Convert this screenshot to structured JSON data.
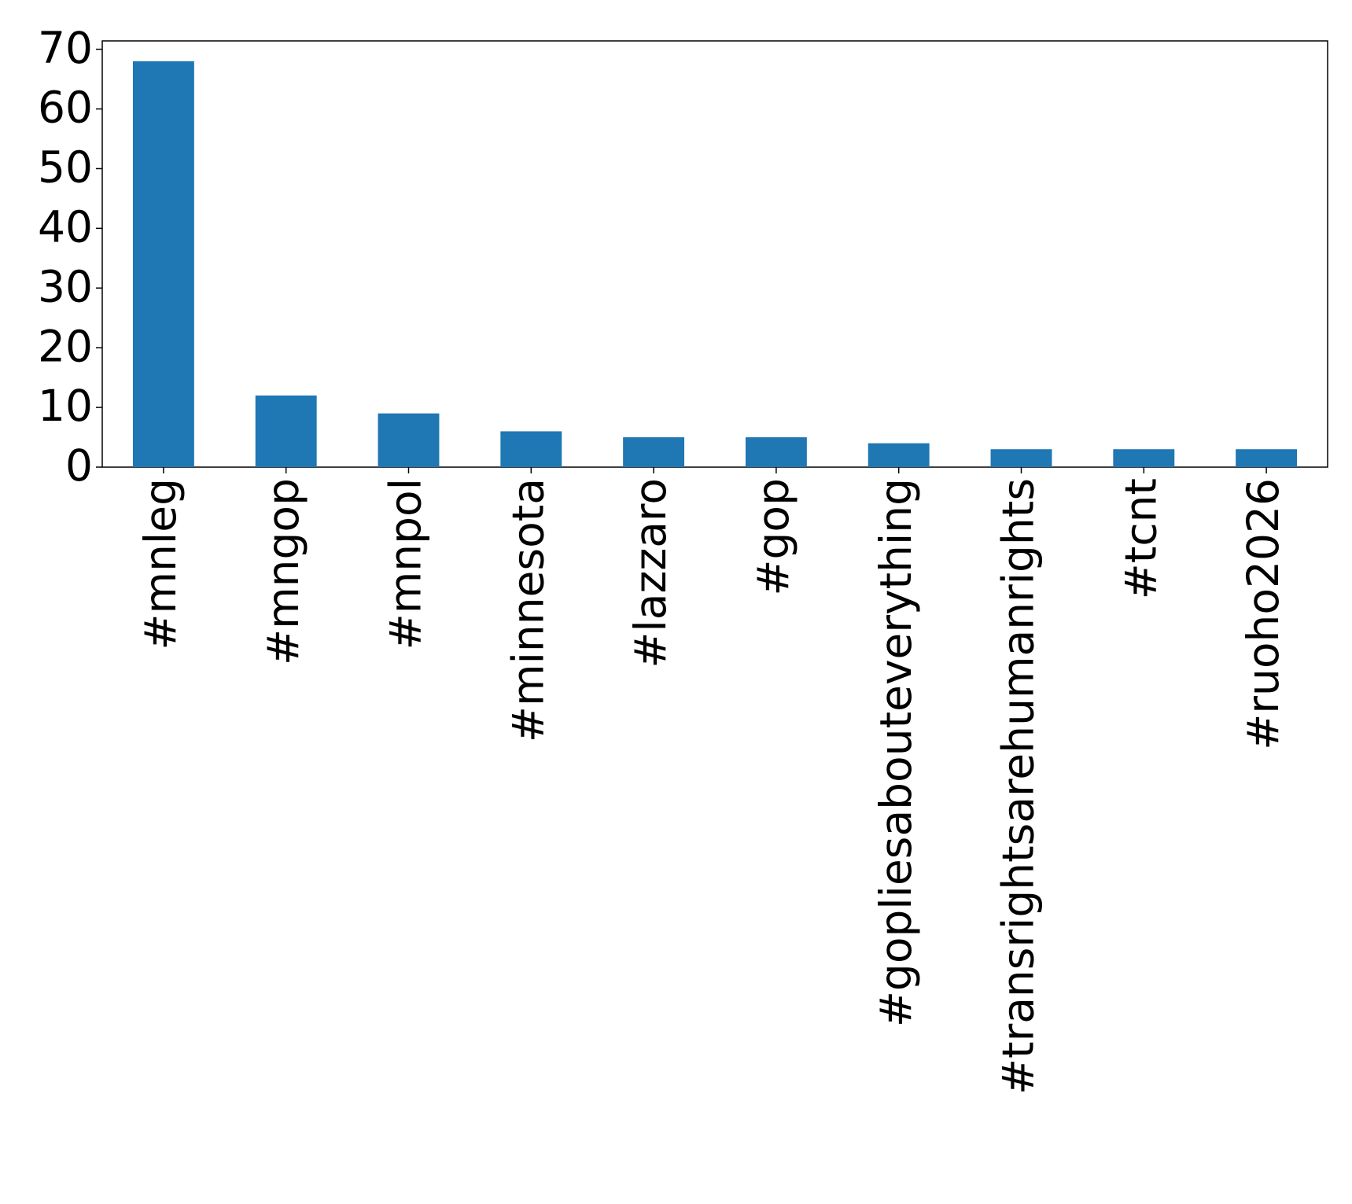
{
  "chart_data": {
    "type": "bar",
    "categories": [
      "#mnleg",
      "#mngop",
      "#mnpol",
      "#minnesota",
      "#lazzaro",
      "#gop",
      "#gopliesabouteverything",
      "#transrightsarehumanrights",
      "#tcnt",
      "#ruoho2026"
    ],
    "values": [
      68,
      12,
      9,
      6,
      5,
      5,
      4,
      3,
      3,
      3
    ],
    "color": "#1f77b4",
    "ylim": [
      0,
      71.4
    ],
    "yticks": [
      0,
      10,
      20,
      30,
      40,
      50,
      60,
      70
    ],
    "grid": false
  }
}
